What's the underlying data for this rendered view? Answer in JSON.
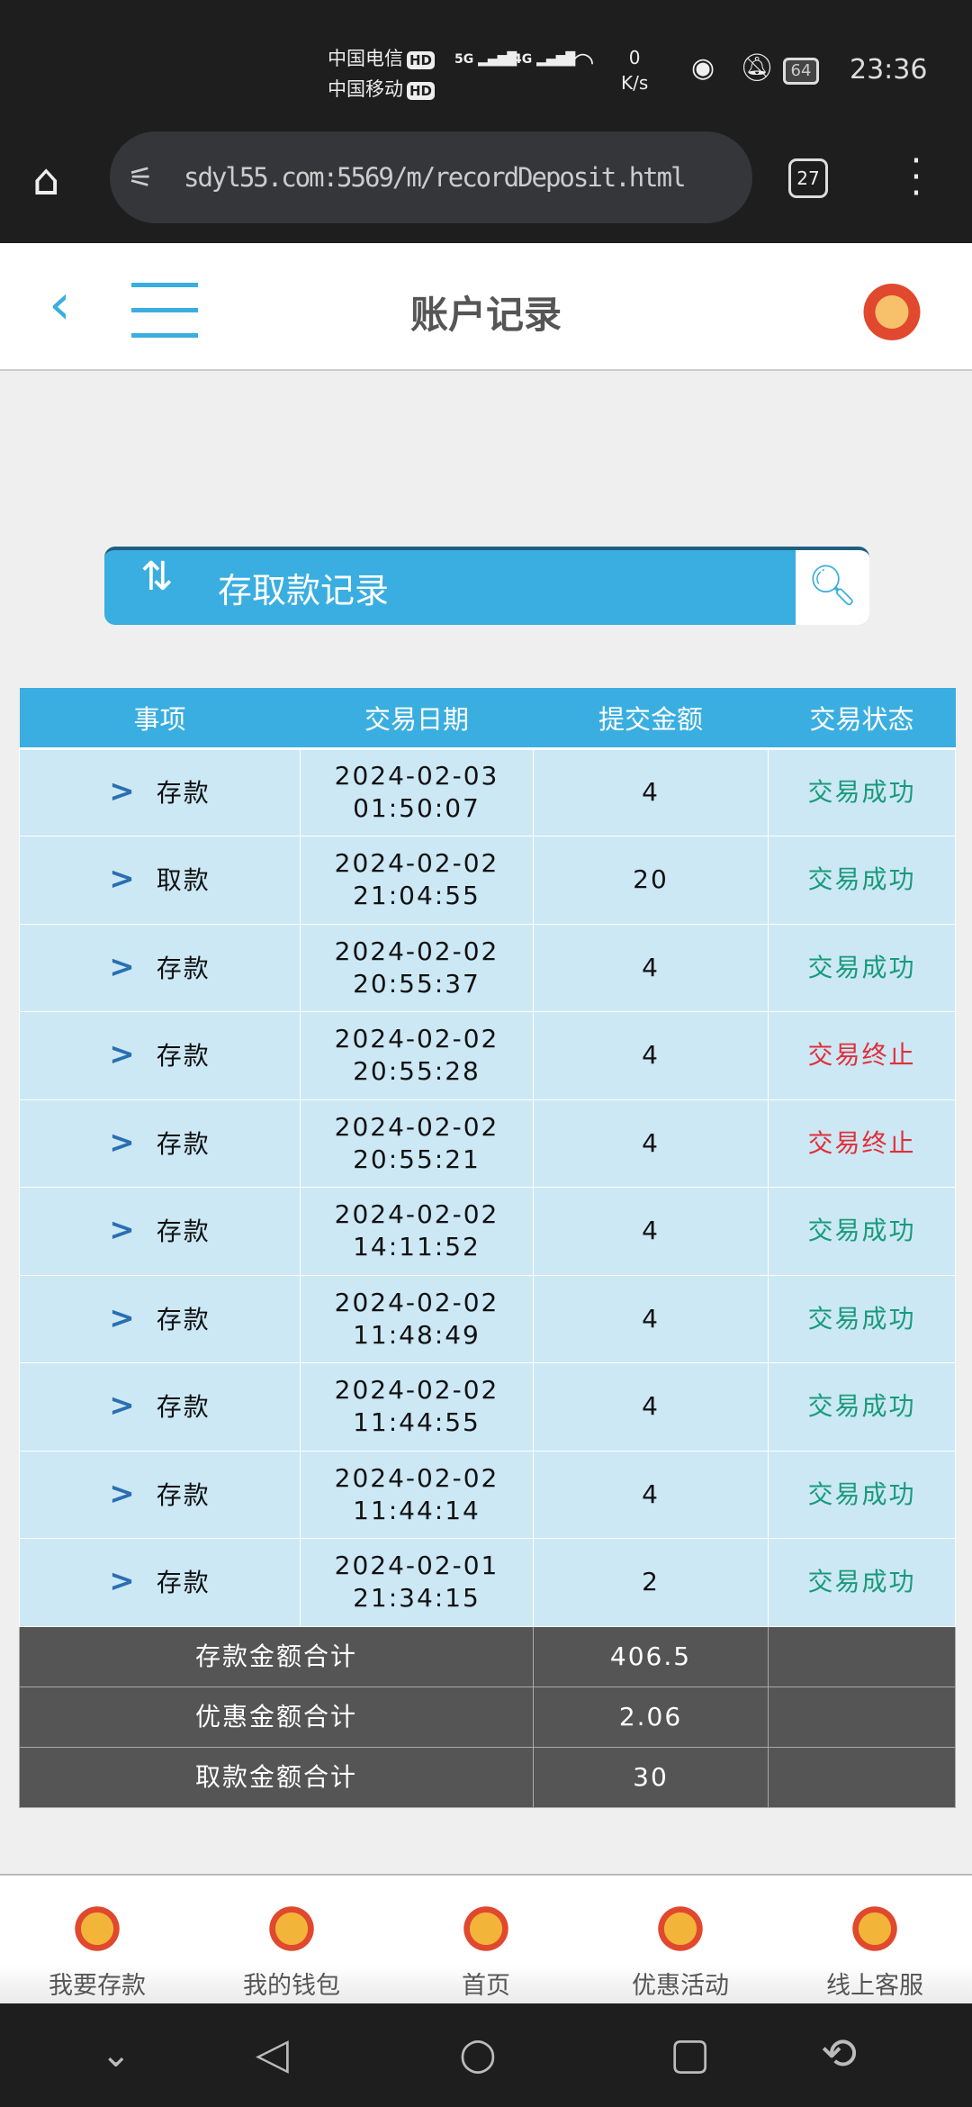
{
  "status_bar": {
    "carrier1": "中国电信",
    "carrier2": "中国移动",
    "hd": "HD",
    "net1": "5G",
    "net2": "4G",
    "speed_value": "0",
    "speed_unit": "K/s",
    "battery": "64",
    "time": "23:36"
  },
  "browser": {
    "url": "sdyl55.com:5569/m/recordDeposit.html",
    "tab_count": "27"
  },
  "header": {
    "title": "账户记录"
  },
  "banner": {
    "title": "存取款记录"
  },
  "table": {
    "headers": [
      "事项",
      "交易日期",
      "提交金额",
      "交易状态"
    ],
    "rows": [
      {
        "type": "存款",
        "date": "2024-02-03",
        "time": "01:50:07",
        "amount": "4",
        "status": "交易成功",
        "ok": true
      },
      {
        "type": "取款",
        "date": "2024-02-02",
        "time": "21:04:55",
        "amount": "20",
        "status": "交易成功",
        "ok": true
      },
      {
        "type": "存款",
        "date": "2024-02-02",
        "time": "20:55:37",
        "amount": "4",
        "status": "交易成功",
        "ok": true
      },
      {
        "type": "存款",
        "date": "2024-02-02",
        "time": "20:55:28",
        "amount": "4",
        "status": "交易终止",
        "ok": false
      },
      {
        "type": "存款",
        "date": "2024-02-02",
        "time": "20:55:21",
        "amount": "4",
        "status": "交易终止",
        "ok": false
      },
      {
        "type": "存款",
        "date": "2024-02-02",
        "time": "14:11:52",
        "amount": "4",
        "status": "交易成功",
        "ok": true
      },
      {
        "type": "存款",
        "date": "2024-02-02",
        "time": "11:48:49",
        "amount": "4",
        "status": "交易成功",
        "ok": true
      },
      {
        "type": "存款",
        "date": "2024-02-02",
        "time": "11:44:55",
        "amount": "4",
        "status": "交易成功",
        "ok": true
      },
      {
        "type": "存款",
        "date": "2024-02-02",
        "time": "11:44:14",
        "amount": "4",
        "status": "交易成功",
        "ok": true
      },
      {
        "type": "存款",
        "date": "2024-02-01",
        "time": "21:34:15",
        "amount": "2",
        "status": "交易成功",
        "ok": true
      }
    ],
    "summary": [
      {
        "label": "存款金额合计",
        "value": "406.5"
      },
      {
        "label": "优惠金额合计",
        "value": "2.06"
      },
      {
        "label": "取款金额合计",
        "value": "30"
      }
    ]
  },
  "colors": {
    "accent": "#3aaee0",
    "success": "#1a9a7a",
    "fail": "#e0303a"
  },
  "bottom_nav": [
    {
      "label": "我要存款"
    },
    {
      "label": "我的钱包"
    },
    {
      "label": "首页"
    },
    {
      "label": "优惠活动"
    },
    {
      "label": "线上客服"
    }
  ]
}
